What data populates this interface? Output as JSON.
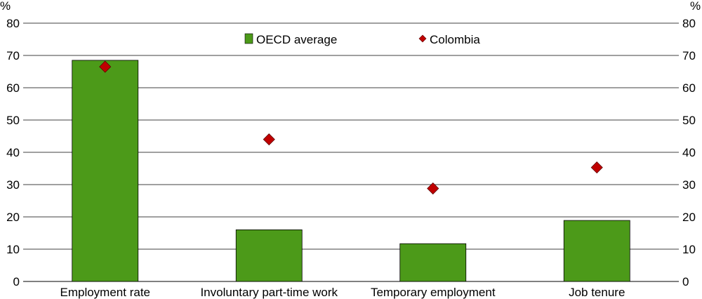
{
  "chart_data": {
    "type": "bar",
    "categories": [
      "Employment rate",
      "Involuntary part-time work",
      "Temporary employment",
      "Job tenure"
    ],
    "series": [
      {
        "name": "OECD average",
        "kind": "bar",
        "color": "#4c9a19",
        "values": [
          68.5,
          16,
          11.7,
          18.9
        ]
      },
      {
        "name": "Colombia",
        "kind": "marker",
        "marker": "diamond",
        "color": "#c00000",
        "values": [
          66.5,
          44,
          28.8,
          35.3
        ]
      }
    ],
    "ylim": [
      0,
      80
    ],
    "yticks": [
      "0",
      "10",
      "20",
      "30",
      "40",
      "50",
      "60",
      "70",
      "80"
    ],
    "y_unit_left": "%",
    "y_unit_right": "%",
    "grid": true,
    "legend_position": "top-center"
  }
}
